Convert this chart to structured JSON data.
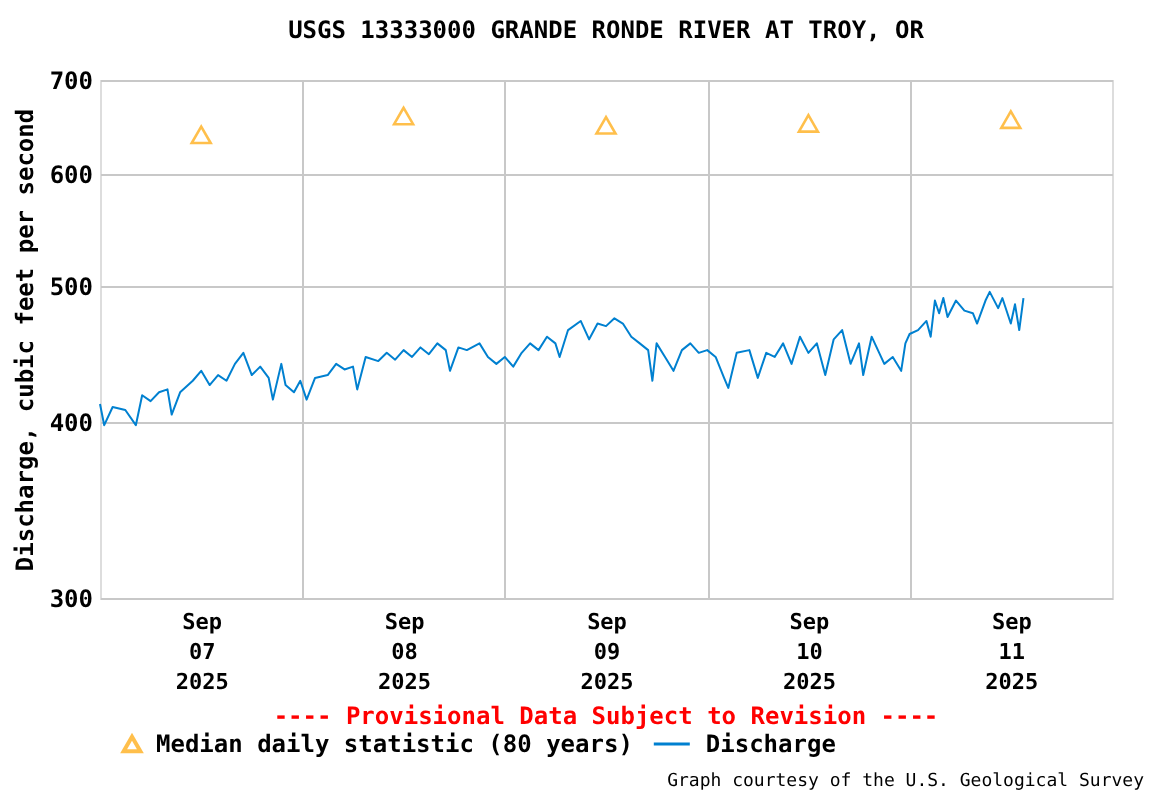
{
  "chart_data": {
    "type": "line",
    "title": "USGS 13333000 GRANDE RONDE RIVER AT TROY, OR",
    "ylabel": "Discharge, cubic feet per second",
    "log": "y",
    "ylim": [
      300,
      700
    ],
    "yticks": [
      300,
      400,
      500,
      600,
      700
    ],
    "xlim": [
      "2025-09-07T00:00",
      "2025-09-12T00:00"
    ],
    "xticks": [
      {
        "value": "2025-09-07T12:00",
        "label": "Sep\n07\n2025"
      },
      {
        "value": "2025-09-08T12:00",
        "label": "Sep\n08\n2025"
      },
      {
        "value": "2025-09-09T12:00",
        "label": "Sep\n09\n2025"
      },
      {
        "value": "2025-09-10T12:00",
        "label": "Sep\n10\n2025"
      },
      {
        "value": "2025-09-11T12:00",
        "label": "Sep\n11\n2025"
      },
      {
        "value": "2025-09-08T00:00",
        "label": null
      },
      {
        "value": "2025-09-09T00:00",
        "label": null
      },
      {
        "value": "2025-09-10T00:00",
        "label": null
      },
      {
        "value": "2025-09-11T00:00",
        "label": null
      }
    ],
    "grid": true,
    "legend": "bottom",
    "annotations": [
      "---- Provisional Data Subject to Revision ----",
      "Graph courtesy of the U.S. Geological Survey"
    ],
    "series": [
      {
        "name": "Median daily statistic (80 years)",
        "type": "scatter",
        "marker": "triangle",
        "color": "#ffa500",
        "x": [
          "2025-09-07T12:00",
          "2025-09-08T12:00",
          "2025-09-09T12:00",
          "2025-09-10T12:00",
          "2025-09-11T12:00"
        ],
        "values": [
          640,
          660,
          650,
          652,
          656
        ]
      },
      {
        "name": "Discharge",
        "marker": "none",
        "color": "#0080d0",
        "x": [
          "2025-09-07T00:00",
          "2025-09-07T00:30",
          "2025-09-07T01:30",
          "2025-09-07T03:00",
          "2025-09-07T04:15",
          "2025-09-07T05:00",
          "2025-09-07T06:00",
          "2025-09-07T07:00",
          "2025-09-07T08:00",
          "2025-09-07T08:30",
          "2025-09-07T09:30",
          "2025-09-07T11:00",
          "2025-09-07T12:00",
          "2025-09-07T13:00",
          "2025-09-07T14:00",
          "2025-09-07T15:00",
          "2025-09-07T16:00",
          "2025-09-07T17:00",
          "2025-09-07T18:00",
          "2025-09-07T19:00",
          "2025-09-07T20:00",
          "2025-09-07T20:30",
          "2025-09-07T21:30",
          "2025-09-07T22:00",
          "2025-09-07T23:00",
          "2025-09-07T23:45",
          "2025-09-08T00:30",
          "2025-09-08T01:30",
          "2025-09-08T03:00",
          "2025-09-08T04:00",
          "2025-09-08T05:00",
          "2025-09-08T06:00",
          "2025-09-08T06:30",
          "2025-09-08T07:30",
          "2025-09-08T09:00",
          "2025-09-08T10:00",
          "2025-09-08T11:00",
          "2025-09-08T12:00",
          "2025-09-08T13:00",
          "2025-09-08T14:00",
          "2025-09-08T15:00",
          "2025-09-08T16:00",
          "2025-09-08T17:00",
          "2025-09-08T17:30",
          "2025-09-08T18:30",
          "2025-09-08T19:30",
          "2025-09-08T21:00",
          "2025-09-08T22:00",
          "2025-09-08T23:00",
          "2025-09-09T00:00",
          "2025-09-09T01:00",
          "2025-09-09T02:00",
          "2025-09-09T03:00",
          "2025-09-09T04:00",
          "2025-09-09T05:00",
          "2025-09-09T06:00",
          "2025-09-09T06:30",
          "2025-09-09T07:30",
          "2025-09-09T09:00",
          "2025-09-09T10:00",
          "2025-09-09T11:00",
          "2025-09-09T12:00",
          "2025-09-09T13:00",
          "2025-09-09T14:00",
          "2025-09-09T15:00",
          "2025-09-09T16:00",
          "2025-09-09T17:00",
          "2025-09-09T17:30",
          "2025-09-09T18:00",
          "2025-09-09T19:00",
          "2025-09-09T20:00",
          "2025-09-09T21:00",
          "2025-09-09T22:00",
          "2025-09-09T23:00",
          "2025-09-10T00:00",
          "2025-09-10T01:00",
          "2025-09-10T02:00",
          "2025-09-10T02:30",
          "2025-09-10T03:30",
          "2025-09-10T05:00",
          "2025-09-10T06:00",
          "2025-09-10T07:00",
          "2025-09-10T08:00",
          "2025-09-10T09:00",
          "2025-09-10T10:00",
          "2025-09-10T11:00",
          "2025-09-10T12:00",
          "2025-09-10T13:00",
          "2025-09-10T14:00",
          "2025-09-10T15:00",
          "2025-09-10T16:00",
          "2025-09-10T17:00",
          "2025-09-10T18:00",
          "2025-09-10T18:30",
          "2025-09-10T19:30",
          "2025-09-10T21:00",
          "2025-09-10T22:00",
          "2025-09-10T23:00",
          "2025-09-10T23:30",
          "2025-09-11T00:00",
          "2025-09-11T01:00",
          "2025-09-11T02:00",
          "2025-09-11T02:30",
          "2025-09-11T03:00",
          "2025-09-11T03:30",
          "2025-09-11T04:00",
          "2025-09-11T04:30",
          "2025-09-11T05:30",
          "2025-09-11T06:30",
          "2025-09-11T07:30",
          "2025-09-11T08:00",
          "2025-09-11T09:00",
          "2025-09-11T09:30",
          "2025-09-11T10:30",
          "2025-09-11T11:00",
          "2025-09-11T12:00",
          "2025-09-11T12:30",
          "2025-09-11T13:00",
          "2025-09-11T13:30"
        ],
        "values": [
          412,
          398,
          410,
          408,
          398,
          418,
          414,
          420,
          422,
          405,
          420,
          428,
          435,
          425,
          432,
          428,
          440,
          448,
          432,
          438,
          430,
          415,
          440,
          425,
          420,
          428,
          415,
          430,
          432,
          440,
          436,
          438,
          422,
          445,
          442,
          448,
          443,
          450,
          445,
          452,
          447,
          455,
          450,
          435,
          452,
          450,
          455,
          445,
          440,
          445,
          438,
          448,
          455,
          450,
          460,
          455,
          445,
          465,
          472,
          458,
          470,
          468,
          474,
          470,
          460,
          455,
          450,
          428,
          455,
          445,
          435,
          450,
          455,
          448,
          450,
          445,
          430,
          423,
          448,
          450,
          430,
          448,
          445,
          455,
          440,
          460,
          448,
          455,
          432,
          458,
          465,
          440,
          455,
          432,
          460,
          440,
          445,
          435,
          455,
          462,
          465,
          472,
          460,
          488,
          478,
          490,
          475,
          488,
          480,
          478,
          470,
          488,
          495,
          482,
          490,
          470,
          485,
          465,
          490
        ]
      }
    ]
  }
}
